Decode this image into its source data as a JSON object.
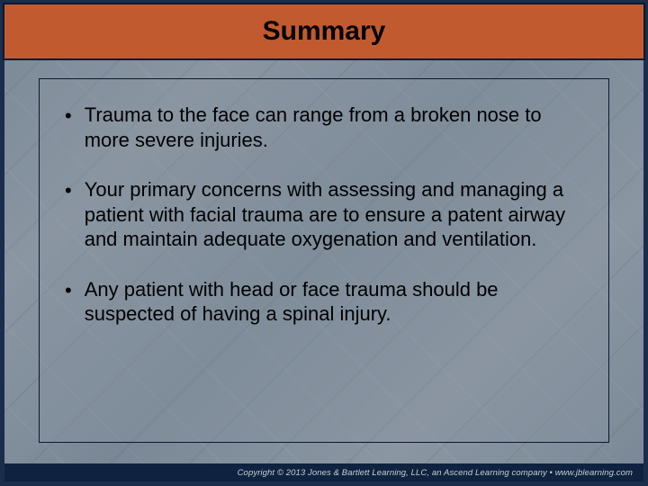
{
  "slide": {
    "title": "Summary",
    "bullets": [
      "Trauma to the face can range from a broken nose to more severe injuries.",
      "Your primary concerns with assessing and managing a patient with facial trauma are to ensure a patent airway and maintain adequate oxygenation and ventilation.",
      "Any patient with head or face trauma should be suspected of having a spinal injury."
    ],
    "footer": "Copyright © 2013 Jones & Bartlett Learning, LLC, an Ascend Learning company • www.jblearning.com"
  },
  "style": {
    "background_color": "#7f8c99",
    "border_color": "#1a2d4a",
    "title_bar_color": "#c15a2f",
    "title_text_color": "#000000",
    "title_fontsize": 30,
    "title_fontweight": "bold",
    "content_border_color": "#0a1833",
    "bullet_text_color": "#000000",
    "bullet_fontsize": 22,
    "footer_bg_color": "#0f2340",
    "footer_text_color": "#c8cdd4",
    "footer_fontsize": 9.5
  }
}
